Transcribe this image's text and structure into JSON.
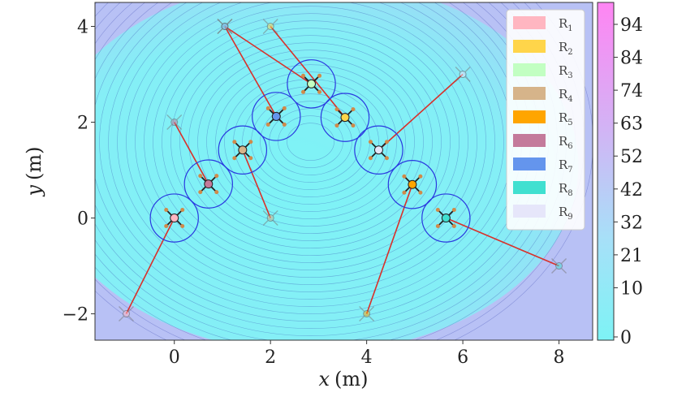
{
  "chart_data": {
    "type": "heatmap",
    "title": "",
    "xlabel": "x (m)",
    "ylabel": "y (m)",
    "xlabel_parts": [
      "x",
      "(m)"
    ],
    "ylabel_parts": [
      "y",
      "(m)"
    ],
    "xlim": [
      -1.65,
      8.7
    ],
    "ylim": [
      -2.55,
      4.5
    ],
    "xticks": [
      0,
      2,
      4,
      6,
      8
    ],
    "yticks": [
      -2,
      0,
      2,
      4
    ],
    "xtick_labels": [
      "0",
      "2",
      "4",
      "6",
      "8"
    ],
    "ytick_labels": [
      "−2",
      "0",
      "2",
      "4"
    ],
    "grid": false,
    "legend_placement": "top-right",
    "colorbar": {
      "ticks": [
        "94",
        "84",
        "74",
        "63",
        "52",
        "42",
        "32",
        "21",
        "10",
        "0"
      ],
      "min_color": "#7df3f5",
      "max_color": "#ff85f3"
    },
    "contour_line_color": "#2b3aa8",
    "trajectory_color": "#d9302a",
    "safety_circle_color": "#2a38e0",
    "robots": [
      {
        "label": "R",
        "sub": "1",
        "color": "#ffb6c1",
        "start": [
          -1.0,
          -2.0
        ],
        "goal": [
          0.0,
          0.0
        ]
      },
      {
        "label": "R",
        "sub": "2",
        "color": "#ffd54a",
        "start": [
          2.0,
          4.0
        ],
        "goal": [
          3.55,
          2.1
        ]
      },
      {
        "label": "R",
        "sub": "3",
        "color": "#c2ffc2",
        "start": [
          1.05,
          4.0
        ],
        "goal": [
          2.85,
          2.8
        ]
      },
      {
        "label": "R",
        "sub": "4",
        "color": "#d6b48a",
        "start": [
          2.0,
          0.0
        ],
        "goal": [
          1.42,
          1.42
        ]
      },
      {
        "label": "R",
        "sub": "5",
        "color": "#ffa500",
        "start": [
          4.0,
          -2.0
        ],
        "goal": [
          4.95,
          0.7
        ]
      },
      {
        "label": "R",
        "sub": "6",
        "color": "#c47a9b",
        "start": [
          0.0,
          2.0
        ],
        "goal": [
          0.71,
          0.71
        ]
      },
      {
        "label": "R",
        "sub": "7",
        "color": "#6495ed",
        "start": [
          1.05,
          4.0
        ],
        "goal": [
          2.12,
          2.12
        ]
      },
      {
        "label": "R",
        "sub": "8",
        "color": "#40e0d0",
        "start": [
          8.0,
          -1.0
        ],
        "goal": [
          5.65,
          0.0
        ]
      },
      {
        "label": "R",
        "sub": "9",
        "color": "#e6e6fa",
        "start": [
          6.0,
          3.0
        ],
        "goal": [
          4.25,
          1.42
        ]
      }
    ]
  }
}
